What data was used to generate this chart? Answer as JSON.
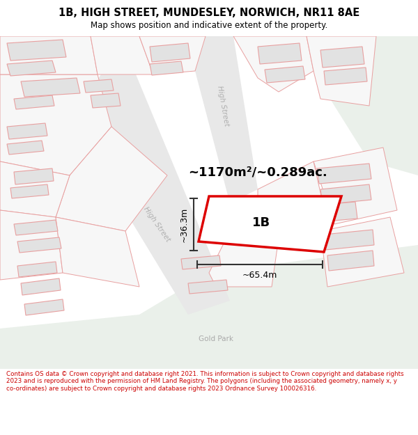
{
  "title": "1B, HIGH STREET, MUNDESLEY, NORWICH, NR11 8AE",
  "subtitle": "Map shows position and indicative extent of the property.",
  "footer": "Contains OS data © Crown copyright and database right 2021. This information is subject to Crown copyright and database rights 2023 and is reproduced with the permission of HM Land Registry. The polygons (including the associated geometry, namely x, y co-ordinates) are subject to Crown copyright and database rights 2023 Ordnance Survey 100026316.",
  "area_label": "~1170m²/~0.289ac.",
  "width_label": "~65.4m",
  "height_label": "~36.3m",
  "property_label": "1B",
  "street_label_upper": "High Street",
  "street_label_lower": "High Street",
  "gold_park_label": "Gold Park",
  "map_bg": "#f7f7f7",
  "green_area": "#eaf0ea",
  "road_color": "#e8e8e8",
  "building_fill": "#e2e2e2",
  "building_stroke": "#e8a0a0",
  "outline_stroke": "#e8a0a0",
  "property_stroke": "#dd0000",
  "property_fill": "#ffffff",
  "dim_color": "#333333",
  "title_color": "#000000",
  "footer_color": "#cc0000",
  "header_bg": "#ffffff",
  "footer_bg": "#ffffff",
  "title_fontsize": 10.5,
  "subtitle_fontsize": 8.5,
  "footer_fontsize": 6.3,
  "area_fontsize": 13,
  "label_fontsize": 13,
  "dim_fontsize": 9
}
